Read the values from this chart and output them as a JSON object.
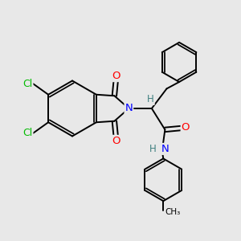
{
  "bg_color": "#e8e8e8",
  "bond_color": "#000000",
  "bond_width": 1.4,
  "atom_colors": {
    "O": "#ff0000",
    "N": "#0000ff",
    "Cl": "#00bb00",
    "H": "#408080",
    "C": "#000000"
  },
  "font_size": 8.5
}
